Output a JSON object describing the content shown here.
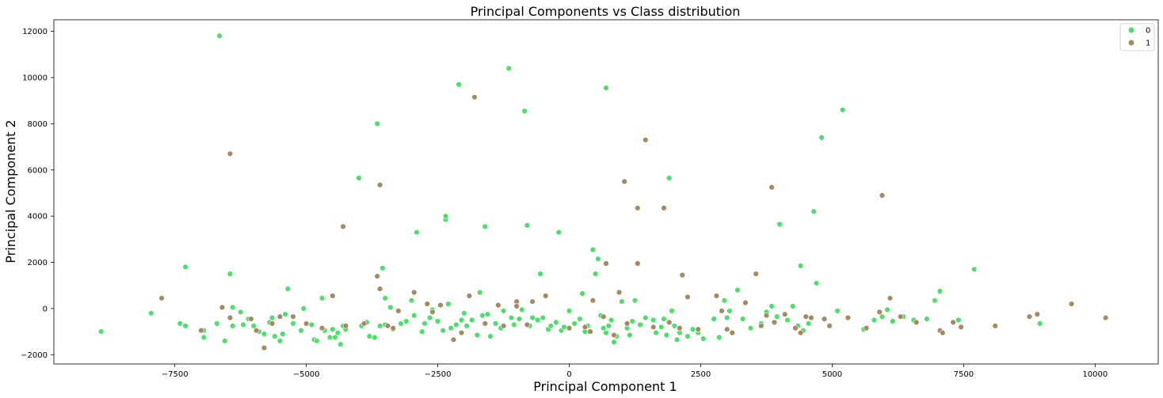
{
  "chart_data": {
    "type": "scatter",
    "title": "Principal Components vs Class distribution",
    "xlabel": "Principal Component 1",
    "ylabel": "Principal Component 2",
    "xlim": [
      -9800,
      11200
    ],
    "ylim": [
      -2400,
      12500
    ],
    "xticks": [
      -7500,
      -5000,
      -2500,
      0,
      2500,
      5000,
      7500,
      10000
    ],
    "xtick_labels": [
      "−7500",
      "−5000",
      "−2500",
      "0",
      "2500",
      "5000",
      "7500",
      "10000"
    ],
    "yticks": [
      -2000,
      0,
      2000,
      4000,
      6000,
      8000,
      10000,
      12000
    ],
    "ytick_labels": [
      "−2000",
      "0",
      "2000",
      "4000",
      "6000",
      "8000",
      "10000",
      "12000"
    ],
    "grid": false,
    "legend_position": "top-right",
    "series": [
      {
        "name": "0",
        "color": "#4dde6b",
        "points": [
          [
            -8900,
            -1000
          ],
          [
            -7950,
            -200
          ],
          [
            -7400,
            -650
          ],
          [
            -7300,
            -750
          ],
          [
            -7300,
            1800
          ],
          [
            -6950,
            -1250
          ],
          [
            -6950,
            -950
          ],
          [
            -6700,
            -650
          ],
          [
            -6650,
            11800
          ],
          [
            -6550,
            -1400
          ],
          [
            -6450,
            1500
          ],
          [
            -6400,
            50
          ],
          [
            -6400,
            -750
          ],
          [
            -6250,
            -150
          ],
          [
            -6200,
            -700
          ],
          [
            -6100,
            -450
          ],
          [
            -6000,
            -750
          ],
          [
            -5900,
            -1000
          ],
          [
            -5800,
            -1100
          ],
          [
            -5700,
            -600
          ],
          [
            -5650,
            -400
          ],
          [
            -5600,
            -1200
          ],
          [
            -5500,
            -1400
          ],
          [
            -5450,
            -1100
          ],
          [
            -5400,
            -250
          ],
          [
            -5350,
            850
          ],
          [
            -5250,
            -650
          ],
          [
            -5100,
            -950
          ],
          [
            -5050,
            0
          ],
          [
            -4900,
            -700
          ],
          [
            -4850,
            -1350
          ],
          [
            -4800,
            -1400
          ],
          [
            -4700,
            450
          ],
          [
            -4650,
            -950
          ],
          [
            -4550,
            -1250
          ],
          [
            -4500,
            -900
          ],
          [
            -4450,
            -1250
          ],
          [
            -4400,
            -1050
          ],
          [
            -4350,
            -1550
          ],
          [
            -4300,
            -750
          ],
          [
            -4250,
            -900
          ],
          [
            -4000,
            5650
          ],
          [
            -3950,
            -750
          ],
          [
            -3850,
            -600
          ],
          [
            -3800,
            -1200
          ],
          [
            -3700,
            -1250
          ],
          [
            -3650,
            8000
          ],
          [
            -3600,
            -750
          ],
          [
            -3550,
            1750
          ],
          [
            -3500,
            450
          ],
          [
            -3500,
            -700
          ],
          [
            -3400,
            50
          ],
          [
            -3350,
            -900
          ],
          [
            -3200,
            -650
          ],
          [
            -3100,
            -550
          ],
          [
            -3000,
            350
          ],
          [
            -2950,
            -300
          ],
          [
            -2900,
            3300
          ],
          [
            -2800,
            -1000
          ],
          [
            -2750,
            -650
          ],
          [
            -2650,
            -400
          ],
          [
            -2600,
            -50
          ],
          [
            -2500,
            -550
          ],
          [
            -2400,
            -950
          ],
          [
            -2350,
            3850
          ],
          [
            -2350,
            4000
          ],
          [
            -2300,
            200
          ],
          [
            -2250,
            -850
          ],
          [
            -2150,
            -700
          ],
          [
            -2100,
            9700
          ],
          [
            -2050,
            -500
          ],
          [
            -2000,
            -200
          ],
          [
            -1950,
            -750
          ],
          [
            -1850,
            -500
          ],
          [
            -1750,
            -1150
          ],
          [
            -1700,
            700
          ],
          [
            -1650,
            -300
          ],
          [
            -1600,
            3550
          ],
          [
            -1550,
            -250
          ],
          [
            -1500,
            -1200
          ],
          [
            -1400,
            -650
          ],
          [
            -1300,
            -850
          ],
          [
            -1250,
            -100
          ],
          [
            -1150,
            10400
          ],
          [
            -1100,
            -400
          ],
          [
            -1050,
            -700
          ],
          [
            -950,
            -450
          ],
          [
            -900,
            -50
          ],
          [
            -850,
            8550
          ],
          [
            -800,
            3600
          ],
          [
            -750,
            -750
          ],
          [
            -700,
            -400
          ],
          [
            -600,
            -500
          ],
          [
            -550,
            1500
          ],
          [
            -500,
            -400
          ],
          [
            -400,
            -900
          ],
          [
            -350,
            -750
          ],
          [
            -250,
            -600
          ],
          [
            -200,
            3300
          ],
          [
            -150,
            -950
          ],
          [
            -100,
            -800
          ],
          [
            0,
            -100
          ],
          [
            100,
            -650
          ],
          [
            200,
            -450
          ],
          [
            250,
            650
          ],
          [
            300,
            -1000
          ],
          [
            350,
            -750
          ],
          [
            450,
            2550
          ],
          [
            500,
            1500
          ],
          [
            550,
            2150
          ],
          [
            600,
            -300
          ],
          [
            650,
            -850
          ],
          [
            700,
            -1050
          ],
          [
            700,
            9550
          ],
          [
            750,
            -750
          ],
          [
            800,
            -500
          ],
          [
            850,
            -1450
          ],
          [
            900,
            -1200
          ],
          [
            1000,
            300
          ],
          [
            1100,
            -850
          ],
          [
            1150,
            -1150
          ],
          [
            1200,
            -550
          ],
          [
            1250,
            350
          ],
          [
            1350,
            -700
          ],
          [
            1450,
            -400
          ],
          [
            1600,
            -500
          ],
          [
            1650,
            -1050
          ],
          [
            1750,
            -800
          ],
          [
            1800,
            -450
          ],
          [
            1850,
            -1150
          ],
          [
            1900,
            5650
          ],
          [
            1950,
            -100
          ],
          [
            2000,
            -750
          ],
          [
            2050,
            -1350
          ],
          [
            2100,
            -1050
          ],
          [
            2250,
            -1200
          ],
          [
            2350,
            -900
          ],
          [
            2450,
            -1050
          ],
          [
            2550,
            -1300
          ],
          [
            2750,
            -450
          ],
          [
            2850,
            -1250
          ],
          [
            2950,
            350
          ],
          [
            3000,
            -400
          ],
          [
            3050,
            -100
          ],
          [
            3200,
            800
          ],
          [
            3300,
            -450
          ],
          [
            3450,
            -850
          ],
          [
            3650,
            -650
          ],
          [
            3750,
            -150
          ],
          [
            3850,
            100
          ],
          [
            3950,
            -350
          ],
          [
            4000,
            3650
          ],
          [
            4150,
            -500
          ],
          [
            4250,
            100
          ],
          [
            4350,
            -750
          ],
          [
            4400,
            1850
          ],
          [
            4450,
            -950
          ],
          [
            4550,
            -650
          ],
          [
            4650,
            4200
          ],
          [
            4700,
            1100
          ],
          [
            4800,
            7400
          ],
          [
            5100,
            -100
          ],
          [
            5200,
            8600
          ],
          [
            5600,
            -900
          ],
          [
            5800,
            -500
          ],
          [
            5950,
            -350
          ],
          [
            6050,
            -50
          ],
          [
            6150,
            -550
          ],
          [
            6350,
            -350
          ],
          [
            6550,
            -500
          ],
          [
            6800,
            -450
          ],
          [
            6950,
            350
          ],
          [
            7050,
            750
          ],
          [
            7400,
            -500
          ],
          [
            7700,
            1700
          ],
          [
            8950,
            -650
          ]
        ]
      },
      {
        "name": "1",
        "color": "#a58a60",
        "points": [
          [
            -7750,
            450
          ],
          [
            -7000,
            -950
          ],
          [
            -6600,
            50
          ],
          [
            -6450,
            -400
          ],
          [
            -6450,
            6700
          ],
          [
            -6050,
            -450
          ],
          [
            -5950,
            -950
          ],
          [
            -5800,
            -1700
          ],
          [
            -5650,
            -650
          ],
          [
            -5500,
            -350
          ],
          [
            -5250,
            -350
          ],
          [
            -5000,
            -650
          ],
          [
            -4700,
            -850
          ],
          [
            -4500,
            550
          ],
          [
            -4300,
            3550
          ],
          [
            -4250,
            -750
          ],
          [
            -3900,
            -650
          ],
          [
            -3650,
            1400
          ],
          [
            -3600,
            5350
          ],
          [
            -3600,
            850
          ],
          [
            -3450,
            -750
          ],
          [
            -3350,
            -850
          ],
          [
            -3250,
            -100
          ],
          [
            -2950,
            700
          ],
          [
            -2700,
            200
          ],
          [
            -2600,
            -150
          ],
          [
            -2450,
            150
          ],
          [
            -2200,
            -1350
          ],
          [
            -2050,
            -1050
          ],
          [
            -1900,
            550
          ],
          [
            -1800,
            9150
          ],
          [
            -1600,
            -650
          ],
          [
            -1350,
            150
          ],
          [
            -1250,
            -750
          ],
          [
            -1000,
            300
          ],
          [
            -1000,
            100
          ],
          [
            -800,
            -700
          ],
          [
            -700,
            300
          ],
          [
            -450,
            550
          ],
          [
            0,
            -850
          ],
          [
            300,
            -800
          ],
          [
            400,
            -1000
          ],
          [
            450,
            350
          ],
          [
            650,
            -350
          ],
          [
            700,
            1950
          ],
          [
            850,
            -1150
          ],
          [
            950,
            700
          ],
          [
            1050,
            5500
          ],
          [
            1100,
            -650
          ],
          [
            1300,
            4350
          ],
          [
            1300,
            1950
          ],
          [
            1450,
            7300
          ],
          [
            1600,
            -800
          ],
          [
            1800,
            4350
          ],
          [
            1900,
            -600
          ],
          [
            2100,
            -850
          ],
          [
            2150,
            1450
          ],
          [
            2250,
            500
          ],
          [
            2450,
            -900
          ],
          [
            2800,
            550
          ],
          [
            2900,
            -100
          ],
          [
            3000,
            -900
          ],
          [
            3100,
            -1050
          ],
          [
            3350,
            250
          ],
          [
            3550,
            1500
          ],
          [
            3650,
            -750
          ],
          [
            3750,
            -300
          ],
          [
            3850,
            5250
          ],
          [
            3900,
            -600
          ],
          [
            4100,
            -250
          ],
          [
            4300,
            -850
          ],
          [
            4400,
            -1050
          ],
          [
            4500,
            -350
          ],
          [
            4600,
            -400
          ],
          [
            4850,
            -450
          ],
          [
            4950,
            -750
          ],
          [
            5300,
            -400
          ],
          [
            5650,
            -850
          ],
          [
            5900,
            -150
          ],
          [
            5950,
            4900
          ],
          [
            6100,
            450
          ],
          [
            6300,
            -350
          ],
          [
            6600,
            -600
          ],
          [
            7050,
            -950
          ],
          [
            7100,
            -1050
          ],
          [
            7300,
            -600
          ],
          [
            7450,
            -800
          ],
          [
            8100,
            -750
          ],
          [
            8750,
            -350
          ],
          [
            8900,
            -250
          ],
          [
            9550,
            200
          ],
          [
            10200,
            -400
          ]
        ]
      }
    ]
  }
}
